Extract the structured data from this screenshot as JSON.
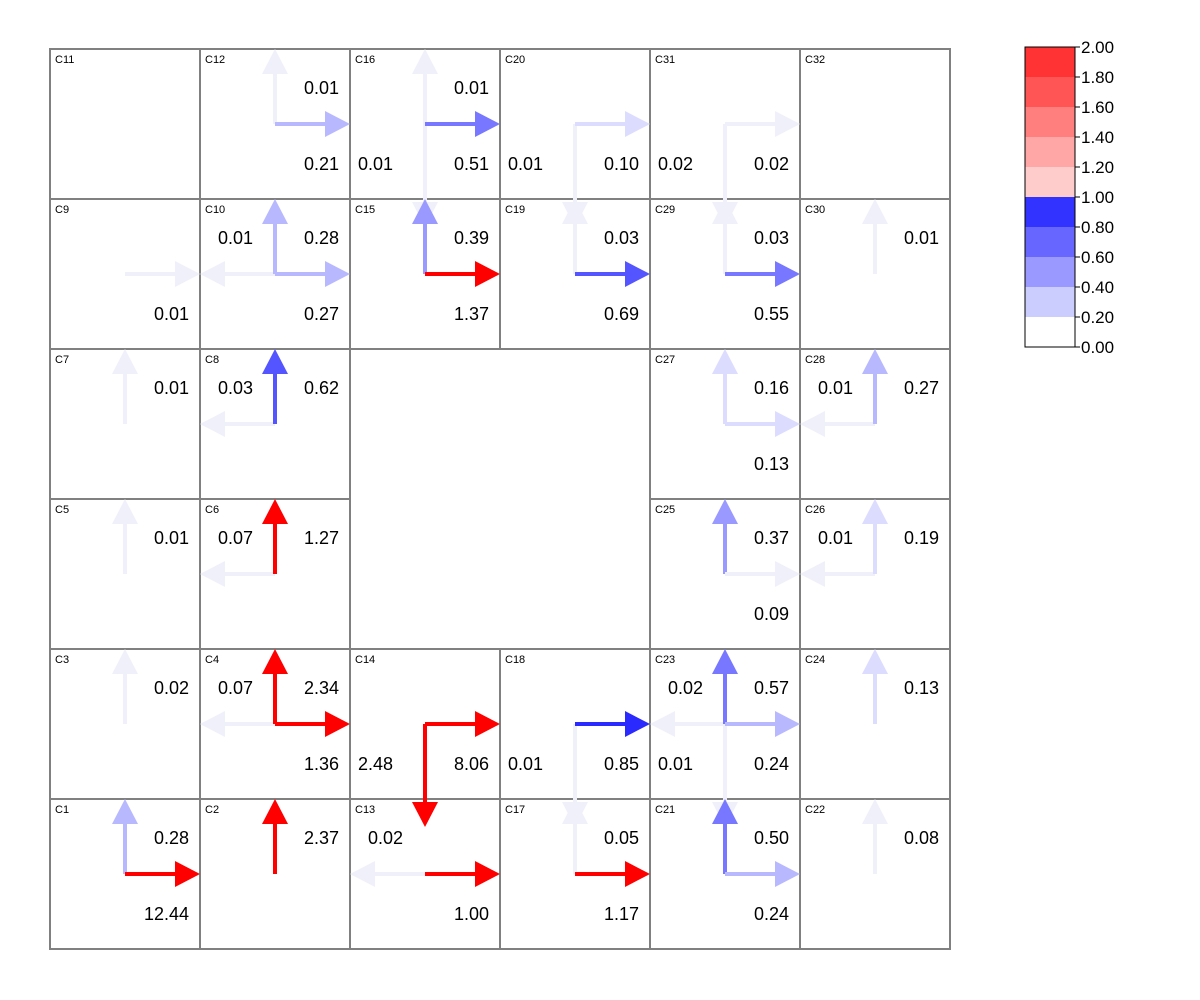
{
  "legend": {
    "ticks": [
      "2.00",
      "1.80",
      "1.60",
      "1.40",
      "1.20",
      "1.00",
      "0.80",
      "0.60",
      "0.40",
      "0.20",
      "0.00"
    ],
    "swatches": [
      {
        "range": "1.80-2.00",
        "color": "#ff3333"
      },
      {
        "range": "1.60-1.80",
        "color": "#ff5555"
      },
      {
        "range": "1.40-1.60",
        "color": "#ff7e7e"
      },
      {
        "range": "1.20-1.40",
        "color": "#ffa6a6"
      },
      {
        "range": "1.00-1.20",
        "color": "#ffcccc"
      },
      {
        "range": "0.80-1.00",
        "color": "#3333ff"
      },
      {
        "range": "0.60-0.80",
        "color": "#6767ff"
      },
      {
        "range": "0.40-0.60",
        "color": "#9999ff"
      },
      {
        "range": "0.20-0.40",
        "color": "#cccdff"
      },
      {
        "range": "0.00-0.20",
        "color": "#ffffff"
      }
    ]
  },
  "grid": {
    "columns": 6,
    "rows": 6
  },
  "cells": [
    {
      "id": "C11",
      "col": 0,
      "row": 0
    },
    {
      "id": "C12",
      "col": 1,
      "row": 0,
      "up": "0.01",
      "right": "0.21"
    },
    {
      "id": "C16",
      "col": 2,
      "row": 0,
      "up": "0.01",
      "down": "0.01",
      "right": "0.51"
    },
    {
      "id": "C20",
      "col": 3,
      "row": 0,
      "down": "0.01",
      "right": "0.10"
    },
    {
      "id": "C31",
      "col": 4,
      "row": 0,
      "down": "0.02",
      "right": "0.02"
    },
    {
      "id": "C32",
      "col": 5,
      "row": 0
    },
    {
      "id": "C9",
      "col": 0,
      "row": 1,
      "right": "0.01"
    },
    {
      "id": "C10",
      "col": 1,
      "row": 1,
      "up": "0.28",
      "left": "0.01",
      "right": "0.27"
    },
    {
      "id": "C15",
      "col": 2,
      "row": 1,
      "up": "0.39",
      "right": "1.37"
    },
    {
      "id": "C19",
      "col": 3,
      "row": 1,
      "up": "0.03",
      "right": "0.69"
    },
    {
      "id": "C29",
      "col": 4,
      "row": 1,
      "up": "0.03",
      "right": "0.55"
    },
    {
      "id": "C30",
      "col": 5,
      "row": 1,
      "up": "0.01"
    },
    {
      "id": "C7",
      "col": 0,
      "row": 2,
      "up": "0.01"
    },
    {
      "id": "C8",
      "col": 1,
      "row": 2,
      "up": "0.62",
      "left": "0.03"
    },
    {
      "id": "C27",
      "col": 4,
      "row": 2,
      "up": "0.16",
      "right": "0.13"
    },
    {
      "id": "C28",
      "col": 5,
      "row": 2,
      "up": "0.27",
      "left": "0.01"
    },
    {
      "id": "C5",
      "col": 0,
      "row": 3,
      "up": "0.01"
    },
    {
      "id": "C6",
      "col": 1,
      "row": 3,
      "up": "1.27",
      "left": "0.07"
    },
    {
      "id": "C25",
      "col": 4,
      "row": 3,
      "up": "0.37",
      "right": "0.09"
    },
    {
      "id": "C26",
      "col": 5,
      "row": 3,
      "up": "0.19",
      "left": "0.01"
    },
    {
      "id": "C3",
      "col": 0,
      "row": 4,
      "up": "0.02"
    },
    {
      "id": "C4",
      "col": 1,
      "row": 4,
      "up": "2.34",
      "left": "0.07",
      "right": "1.36"
    },
    {
      "id": "C14",
      "col": 2,
      "row": 4,
      "down": "2.48",
      "right": "8.06"
    },
    {
      "id": "C18",
      "col": 3,
      "row": 4,
      "down": "0.01",
      "right": "0.85"
    },
    {
      "id": "C23",
      "col": 4,
      "row": 4,
      "up": "0.57",
      "left": "0.02",
      "down": "0.01",
      "right": "0.24"
    },
    {
      "id": "C24",
      "col": 5,
      "row": 4,
      "up": "0.13"
    },
    {
      "id": "C1",
      "col": 0,
      "row": 5,
      "up": "0.28",
      "right": "12.44"
    },
    {
      "id": "C2",
      "col": 1,
      "row": 5,
      "up": "2.37"
    },
    {
      "id": "C13",
      "col": 2,
      "row": 5,
      "left": "0.02",
      "right": "1.00"
    },
    {
      "id": "C17",
      "col": 3,
      "row": 5,
      "up": "0.05",
      "right": "1.17"
    },
    {
      "id": "C21",
      "col": 4,
      "row": 5,
      "up": "0.50",
      "right": "0.24"
    },
    {
      "id": "C22",
      "col": 5,
      "row": 5,
      "up": "0.08"
    }
  ]
}
